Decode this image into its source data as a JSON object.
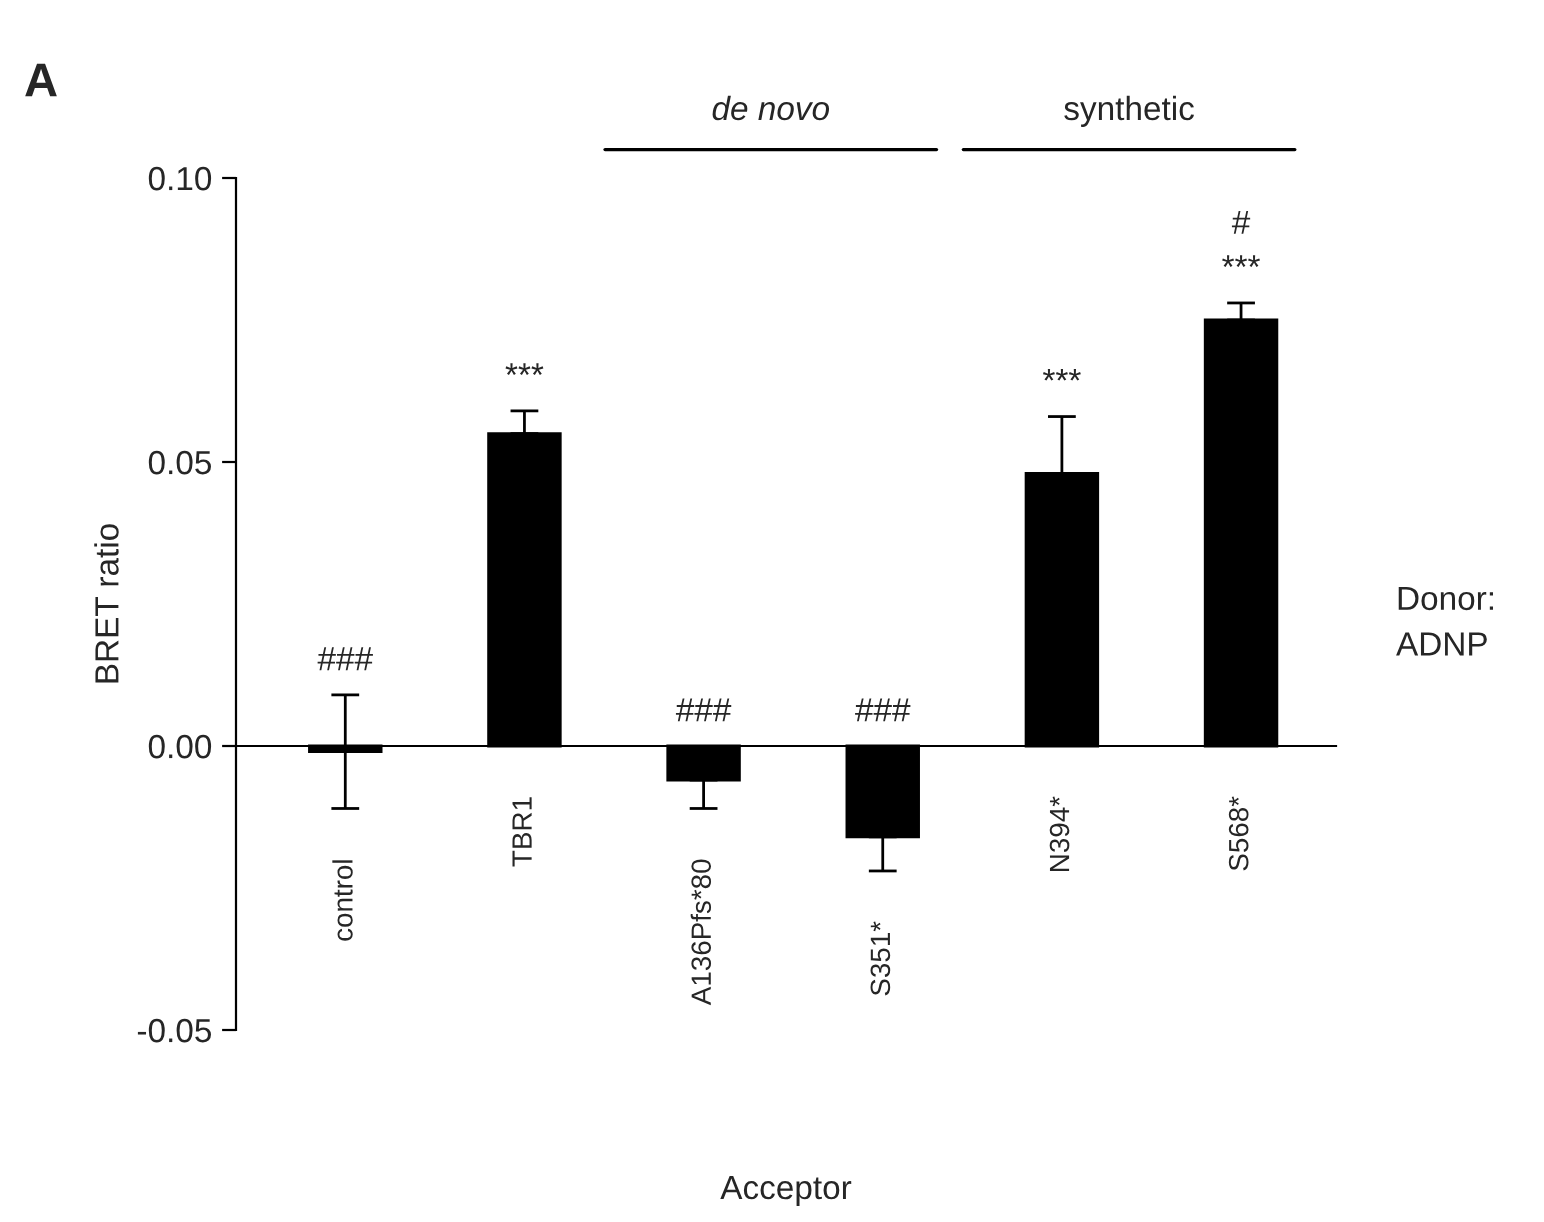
{
  "chart_data": {
    "type": "bar",
    "title": "A",
    "xlabel": "Acceptor",
    "ylabel": "BRET ratio",
    "categories": [
      "control",
      "TBR1",
      "A136Pfs*80",
      "S351*",
      "N394*",
      "S568*"
    ],
    "values": [
      -0.001,
      0.055,
      -0.006,
      -0.016,
      0.048,
      0.075
    ],
    "errors": [
      0.01,
      0.004,
      0.005,
      0.006,
      0.01,
      0.003
    ],
    "color": "#000000",
    "ylim": [
      -0.05,
      0.1
    ],
    "yticks": [
      {
        "value": -0.05,
        "label": "-0.05"
      },
      {
        "value": 0,
        "label": "0.00"
      },
      {
        "value": 0.05,
        "label": "0.05"
      },
      {
        "value": 0.1,
        "label": "0.10"
      }
    ],
    "annotations": [
      {
        "text": "###",
        "x": "control",
        "y": 0.009
      },
      {
        "text": "***",
        "x": "TBR1",
        "y": 0.059
      },
      {
        "text": "###",
        "x": "A136Pfs*80",
        "y": 0
      },
      {
        "text": "###",
        "x": "S351*",
        "y": 0
      },
      {
        "text": "***",
        "x": "N394*",
        "y": 0.058
      },
      {
        "text": "***",
        "x": "S568*",
        "y": 0.078
      },
      {
        "text": "#",
        "x": "S568*",
        "y": 0.078
      },
      "de novo",
      "synthetic",
      "Donor:\nADNP"
    ],
    "grid": false,
    "legend": false
  }
}
